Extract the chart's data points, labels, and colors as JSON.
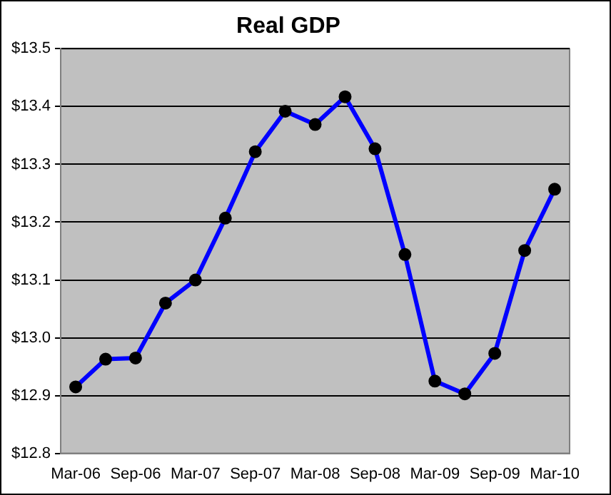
{
  "chart_data": {
    "type": "line",
    "title": "Real GDP",
    "categories": [
      "Mar-06",
      null,
      "Sep-06",
      null,
      "Mar-07",
      null,
      "Sep-07",
      null,
      "Mar-08",
      null,
      "Sep-08",
      null,
      "Mar-09",
      null,
      "Sep-09",
      null,
      "Mar-10"
    ],
    "series": [
      {
        "color": "#0000ff",
        "values": [
          12.915,
          12.963,
          12.965,
          13.06,
          13.1,
          13.207,
          13.322,
          13.392,
          13.369,
          13.417,
          13.327,
          13.144,
          12.925,
          12.903,
          12.973,
          13.151,
          13.257
        ]
      }
    ],
    "ylim": [
      12.8,
      13.5
    ],
    "yticks": [
      {
        "value": 12.8,
        "label": "$12.8"
      },
      {
        "value": 12.9,
        "label": "$12.9"
      },
      {
        "value": 13.0,
        "label": "$13.0"
      },
      {
        "value": 13.1,
        "label": "$13.1"
      },
      {
        "value": 13.2,
        "label": "$13.2"
      },
      {
        "value": 13.3,
        "label": "$13.3"
      },
      {
        "value": 13.4,
        "label": "$13.4"
      },
      {
        "value": 13.5,
        "label": "$13.5"
      }
    ],
    "grid": "y",
    "legend": false,
    "marker": "circle",
    "line_style": "solid"
  }
}
